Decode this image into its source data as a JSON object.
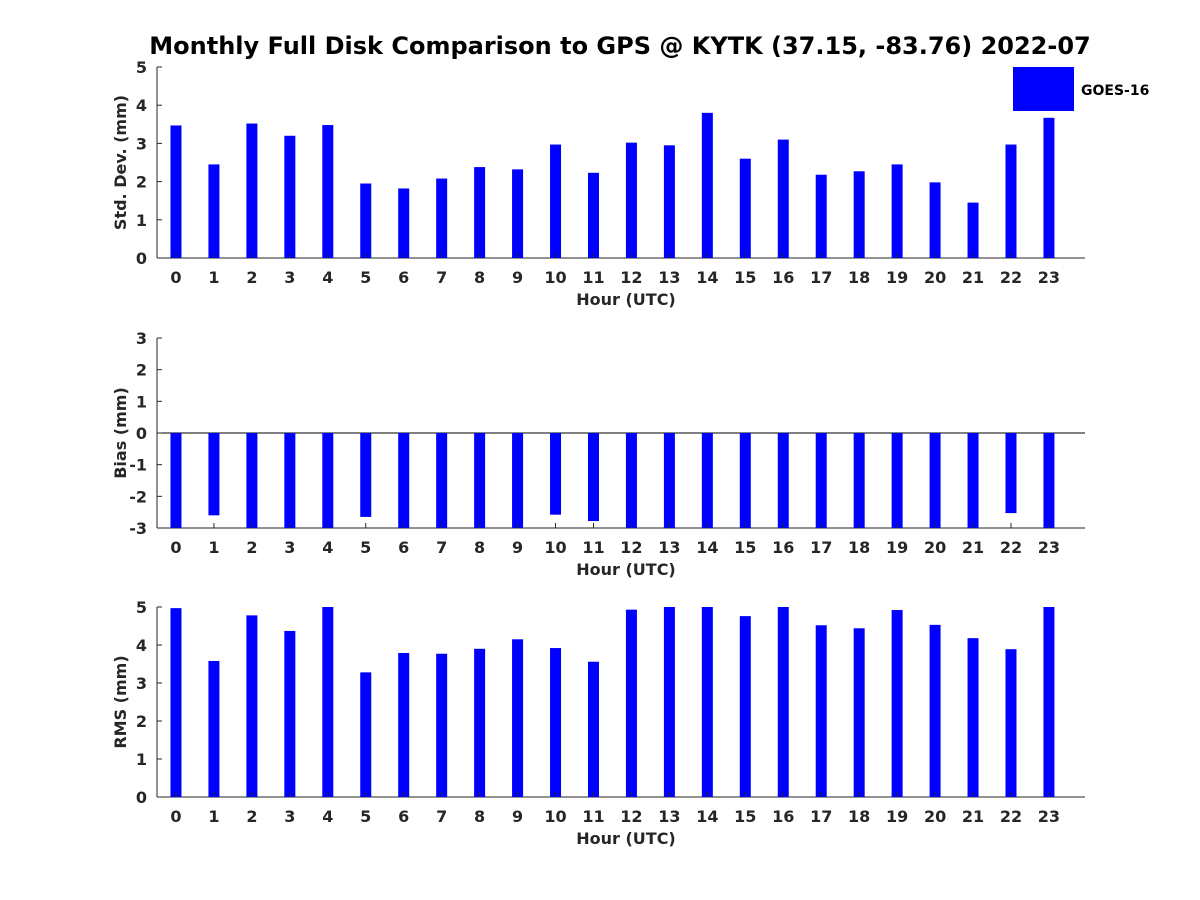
{
  "figure": {
    "title": "Monthly Full Disk Comparison to GPS @ KYTK (37.15, -83.76) 2022-07",
    "legend": {
      "label": "GOES-16",
      "color": "#0000ff",
      "placement": "top-right"
    }
  },
  "chart_data": [
    {
      "type": "bar",
      "xlabel": "Hour (UTC)",
      "ylabel": "Std. Dev. (mm)",
      "ylim": [
        0,
        5
      ],
      "yticks": [
        0,
        1,
        2,
        3,
        4,
        5
      ],
      "categories": [
        "0",
        "1",
        "2",
        "3",
        "4",
        "5",
        "6",
        "7",
        "8",
        "9",
        "10",
        "11",
        "12",
        "13",
        "14",
        "15",
        "16",
        "17",
        "18",
        "19",
        "20",
        "21",
        "22",
        "23"
      ],
      "series": [
        {
          "name": "GOES-16",
          "color": "#0000ff",
          "values": [
            3.47,
            2.45,
            3.52,
            3.2,
            3.48,
            1.95,
            1.82,
            2.08,
            2.38,
            2.32,
            2.97,
            2.23,
            3.02,
            2.95,
            3.8,
            2.6,
            3.1,
            2.18,
            2.27,
            2.45,
            1.98,
            1.45,
            2.97,
            3.67
          ]
        }
      ]
    },
    {
      "type": "bar",
      "xlabel": "Hour (UTC)",
      "ylabel": "Bias (mm)",
      "ylim": [
        -3,
        3
      ],
      "yticks": [
        -3,
        -2,
        -1,
        0,
        1,
        2,
        3
      ],
      "categories": [
        "0",
        "1",
        "2",
        "3",
        "4",
        "5",
        "6",
        "7",
        "8",
        "9",
        "10",
        "11",
        "12",
        "13",
        "14",
        "15",
        "16",
        "17",
        "18",
        "19",
        "20",
        "21",
        "22",
        "23"
      ],
      "series": [
        {
          "name": "GOES-16",
          "color": "#0000ff",
          "values": [
            -3.0,
            -2.6,
            -3.0,
            -3.0,
            -3.0,
            -2.65,
            -3.0,
            -3.0,
            -3.0,
            -3.0,
            -2.58,
            -2.78,
            -3.0,
            -3.0,
            -3.0,
            -3.0,
            -3.0,
            -3.0,
            -3.0,
            -3.0,
            -3.0,
            -3.0,
            -2.53,
            -3.0
          ]
        }
      ]
    },
    {
      "type": "bar",
      "xlabel": "Hour (UTC)",
      "ylabel": "RMS (mm)",
      "ylim": [
        0,
        5
      ],
      "yticks": [
        0,
        1,
        2,
        3,
        4,
        5
      ],
      "categories": [
        "0",
        "1",
        "2",
        "3",
        "4",
        "5",
        "6",
        "7",
        "8",
        "9",
        "10",
        "11",
        "12",
        "13",
        "14",
        "15",
        "16",
        "17",
        "18",
        "19",
        "20",
        "21",
        "22",
        "23"
      ],
      "series": [
        {
          "name": "GOES-16",
          "color": "#0000ff",
          "values": [
            4.97,
            3.58,
            4.78,
            4.37,
            5.0,
            3.28,
            3.79,
            3.77,
            3.9,
            4.15,
            3.92,
            3.56,
            4.93,
            5.0,
            5.0,
            4.76,
            5.0,
            4.52,
            4.44,
            4.92,
            4.53,
            4.18,
            3.89,
            5.0
          ]
        }
      ]
    }
  ]
}
